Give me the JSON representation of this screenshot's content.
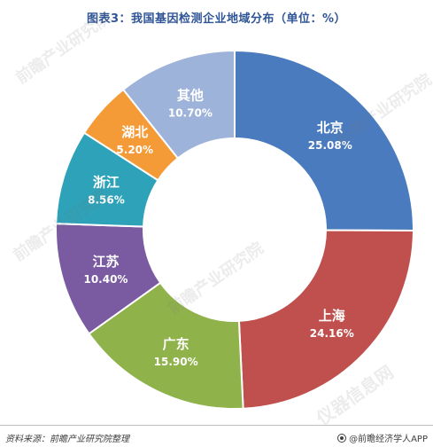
{
  "header": {
    "title": "图表3：我国基因检测企业地域分布（单位：%）"
  },
  "chart_data": {
    "type": "pie",
    "subtype": "donut",
    "title": "图表3：我国基因检测企业地域分布（单位：%）",
    "unit": "%",
    "start_angle": "12 o'clock, clockwise",
    "slices": [
      {
        "label": "北京",
        "value": 25.08,
        "value_label": "25.08%",
        "color": "#4a7bbf"
      },
      {
        "label": "上海",
        "value": 24.16,
        "value_label": "24.16%",
        "color": "#c0504d"
      },
      {
        "label": "广东",
        "value": 15.9,
        "value_label": "15.90%",
        "color": "#8fb24b"
      },
      {
        "label": "江苏",
        "value": 10.4,
        "value_label": "10.40%",
        "color": "#7a5aa0"
      },
      {
        "label": "浙江",
        "value": 8.56,
        "value_label": "8.56%",
        "color": "#2ea2b8"
      },
      {
        "label": "湖北",
        "value": 5.2,
        "value_label": "5.20%",
        "color": "#f49a36"
      },
      {
        "label": "其他",
        "value": 10.7,
        "value_label": "10.70%",
        "color": "#9db3da"
      }
    ]
  },
  "footer": {
    "source": "资料来源：前瞻产业研究院整理",
    "brand": "@前瞻经济学人APP"
  },
  "watermarks": [
    "前瞻产业研究院",
    "前瞻产业研究院",
    "前瞻产业研究院",
    "前瞻产业研究院",
    "仪器信息网"
  ]
}
